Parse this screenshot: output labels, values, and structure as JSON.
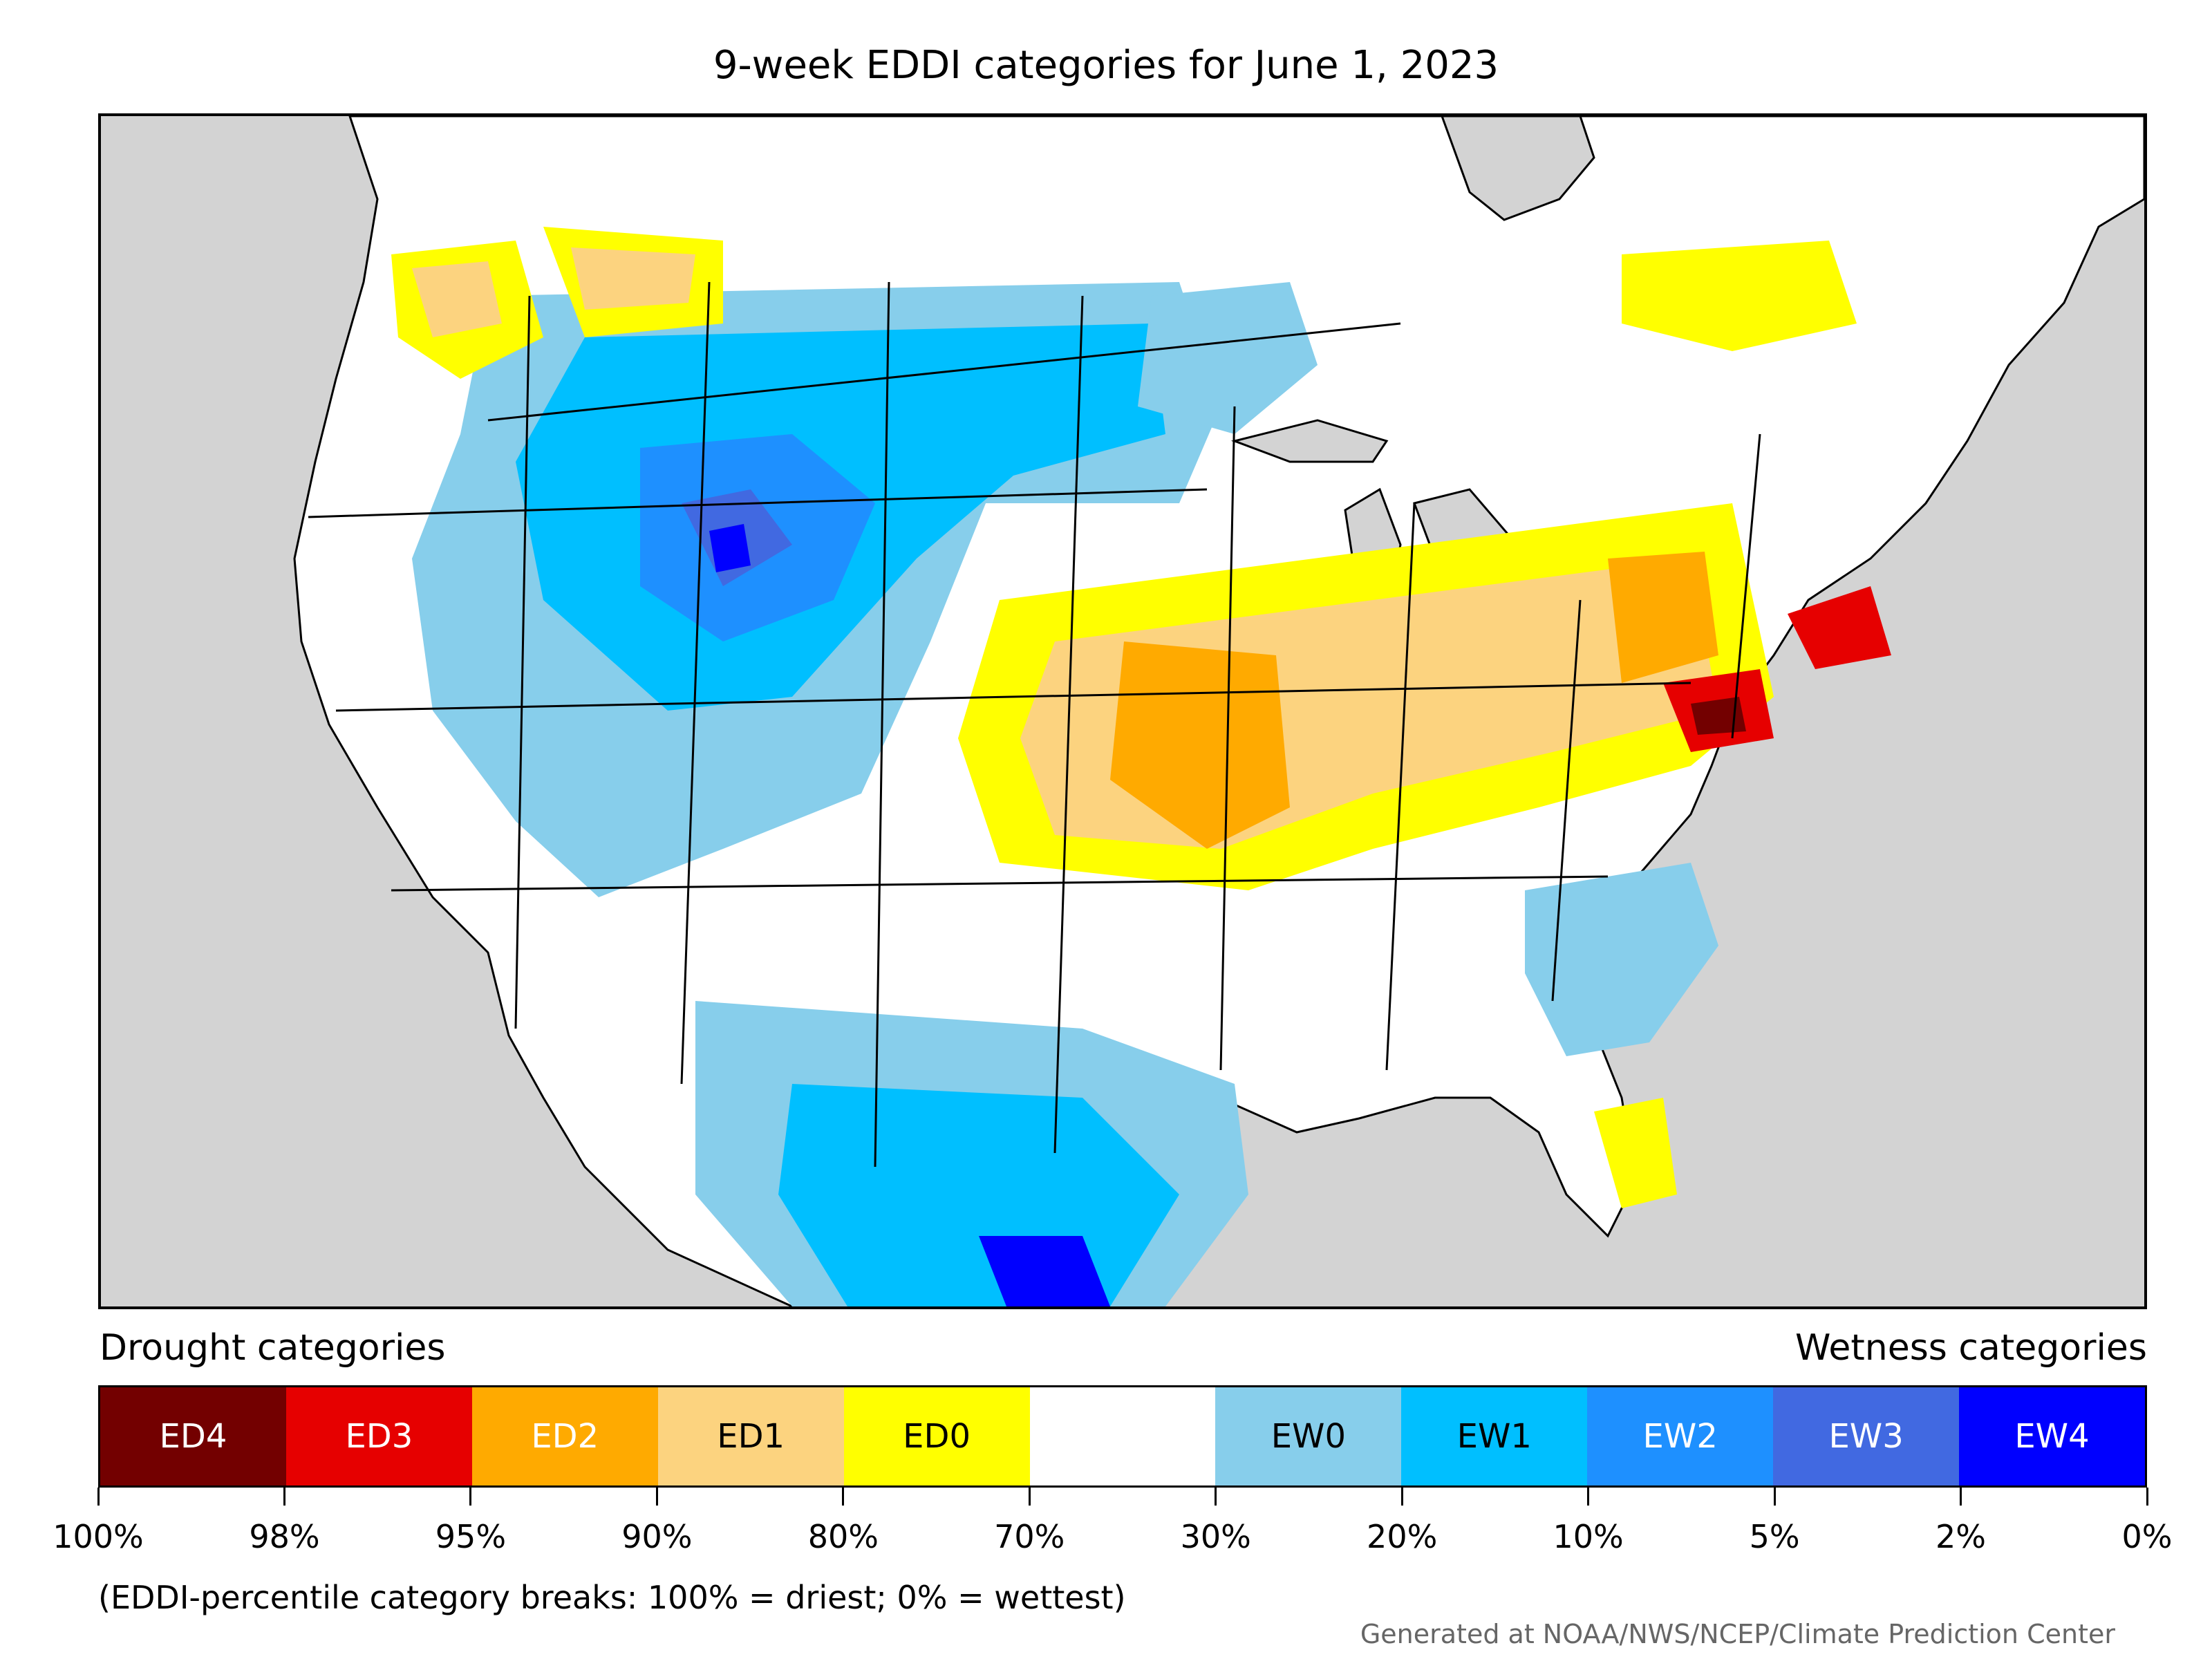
{
  "title": "9-week EDDI categories for June 1, 2023",
  "legend": {
    "drought_heading": "Drought categories",
    "wetness_heading": "Wetness categories",
    "categories": [
      {
        "label": "ED4",
        "color": "#730000",
        "text_color": "#ffffff"
      },
      {
        "label": "ED3",
        "color": "#e60000",
        "text_color": "#ffffff"
      },
      {
        "label": "ED2",
        "color": "#ffaa00",
        "text_color": "#ffffff"
      },
      {
        "label": "ED1",
        "color": "#fcd37f",
        "text_color": "#000000"
      },
      {
        "label": "ED0",
        "color": "#ffff00",
        "text_color": "#000000"
      },
      {
        "label": "",
        "color": "#ffffff",
        "text_color": "#000000"
      },
      {
        "label": "EW0",
        "color": "#87ceeb",
        "text_color": "#000000"
      },
      {
        "label": "EW1",
        "color": "#00bfff",
        "text_color": "#000000"
      },
      {
        "label": "EW2",
        "color": "#1e90ff",
        "text_color": "#ffffff"
      },
      {
        "label": "EW3",
        "color": "#4169e1",
        "text_color": "#ffffff"
      },
      {
        "label": "EW4",
        "color": "#0000ff",
        "text_color": "#ffffff"
      }
    ],
    "tick_labels": [
      "100%",
      "98%",
      "95%",
      "90%",
      "80%",
      "70%",
      "30%",
      "20%",
      "10%",
      "5%",
      "2%",
      "0%"
    ]
  },
  "note": "(EDDI-percentile category breaks: 100% = driest; 0% = wettest)",
  "credit": "Generated at NOAA/NWS/NCEP/Climate Prediction Center",
  "map": {
    "ocean_color": "#d3d3d3",
    "land_color": "#ffffff"
  }
}
